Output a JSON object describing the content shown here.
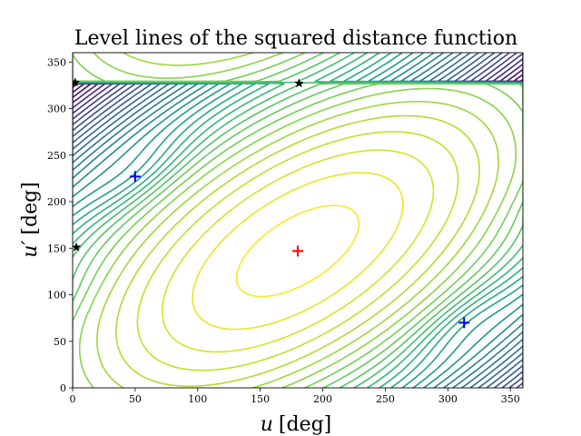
{
  "chart_data": {
    "type": "contour",
    "title": "Level lines of the squared distance function",
    "xlabel_var": "u",
    "xlabel_unit": "[deg]",
    "ylabel_var": "u′",
    "ylabel_unit": "[deg]",
    "xlim": [
      0,
      360
    ],
    "ylim": [
      0,
      360
    ],
    "xticks": [
      0,
      50,
      100,
      150,
      200,
      250,
      300,
      350
    ],
    "yticks": [
      0,
      50,
      100,
      150,
      200,
      250,
      300,
      350
    ],
    "grid": false,
    "colormap": "viridis",
    "maximum": {
      "x": 180,
      "y": 147,
      "color": "#ff0000",
      "marker": "plus"
    },
    "minima": [
      {
        "x": 50,
        "y": 227,
        "color": "#0000ff",
        "marker": "plus"
      },
      {
        "x": 313,
        "y": 70,
        "color": "#0000ff",
        "marker": "plus"
      }
    ],
    "saddles": [
      {
        "x": 2,
        "y": 328,
        "color": "#000000",
        "marker": "star"
      },
      {
        "x": 181,
        "y": 327,
        "color": "#000000",
        "marker": "star"
      },
      {
        "x": 3,
        "y": 151,
        "color": "#000000",
        "marker": "star"
      }
    ]
  }
}
